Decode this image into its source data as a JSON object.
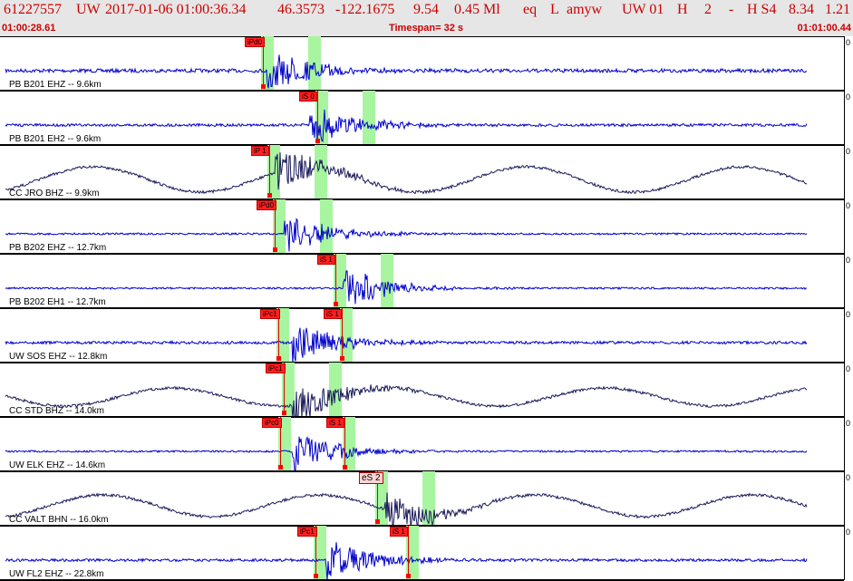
{
  "header": {
    "event_id": "61227557",
    "network": "UW",
    "datetime": "2017-01-06 01:00:36.34",
    "lat": "46.3573",
    "lon": "-122.1675",
    "depth": "9.54",
    "magnitude": "0.45 Ml",
    "etype": "eq",
    "flag": "L",
    "author": "amyw",
    "source": "UW 01",
    "h_flag": "H",
    "count": "2",
    "dash": "-",
    "quality": "H S4",
    "val1": "8.34",
    "val2": "1.21"
  },
  "timebar": {
    "start": "01:00:28.61",
    "timespan": "Timespan=  32 s",
    "end": "01:01:00.44"
  },
  "colors": {
    "header_text": "#cc0000",
    "trace_blue": "#0000cc",
    "trace_dark": "#1a1a5a",
    "window_green": "#a8f5a0",
    "pick_red": "#ff2020"
  },
  "right_strip": {
    "mark": "0"
  },
  "traces": [
    {
      "label": "PB B201 EHZ -- 9.6km",
      "color": "#0000cc",
      "style": "hf",
      "amp": 4,
      "onset": 0.31,
      "coda": 0.43,
      "picks": [
        {
          "label": "iPd0",
          "x": 270,
          "light": false
        }
      ]
    },
    {
      "label": "PB B201 EH2 -- 9.6km",
      "color": "#0000cc",
      "style": "hf",
      "amp": 3,
      "onset": 0.36,
      "coda": 0.46,
      "picks": [
        {
          "label": "iS 0",
          "x": 330,
          "light": false
        }
      ]
    },
    {
      "label": "CC JRO BHZ -- 9.9km",
      "color": "#1a1a5a",
      "style": "lf",
      "amp": 14,
      "onset": 0.32,
      "coda": 0.42,
      "picks": [
        {
          "label": "iP 1",
          "x": 277,
          "light": false
        }
      ]
    },
    {
      "label": "PB B202 EHZ -- 12.7km",
      "color": "#0000cc",
      "style": "hf",
      "amp": 2,
      "onset": 0.33,
      "coda": 0.44,
      "picks": [
        {
          "label": "iPd0",
          "x": 283,
          "light": false
        }
      ]
    },
    {
      "label": "PB B202 EH1 -- 12.7km",
      "color": "#0000cc",
      "style": "hf",
      "amp": 2,
      "onset": 0.4,
      "coda": 0.46,
      "picks": [
        {
          "label": "iS 1",
          "x": 350,
          "light": false
        }
      ]
    },
    {
      "label": "UW SOS EHZ -- 12.8km",
      "color": "#0000cc",
      "style": "hf",
      "amp": 3,
      "onset": 0.34,
      "coda": 0.46,
      "picks": [
        {
          "label": "iPc1",
          "x": 287,
          "light": false
        },
        {
          "label": "iS 1",
          "x": 357,
          "light": false
        }
      ]
    },
    {
      "label": "CC STD BHZ -- 14.0km",
      "color": "#1a1a5a",
      "style": "lf",
      "amp": 10,
      "onset": 0.34,
      "coda": 0.44,
      "picks": [
        {
          "label": "iPc1",
          "x": 293,
          "light": false
        }
      ]
    },
    {
      "label": "UW ELK EHZ -- 14.6km",
      "color": "#0000cc",
      "style": "hf",
      "amp": 2,
      "onset": 0.34,
      "coda": 0.46,
      "picks": [
        {
          "label": "iPc0",
          "x": 289,
          "light": false
        },
        {
          "label": "iS 1",
          "x": 360,
          "light": false
        }
      ]
    },
    {
      "label": "CC VALT BHN -- 16.0km",
      "color": "#1a1a5a",
      "style": "lf",
      "amp": 12,
      "onset": 0.45,
      "coda": 0.55,
      "picks": [
        {
          "label": "eS 2",
          "x": 396,
          "light": true
        }
      ]
    },
    {
      "label": "UW FL2 EHZ -- 22.8km",
      "color": "#0000cc",
      "style": "hf",
      "amp": 3,
      "onset": 0.38,
      "coda": 0.52,
      "picks": [
        {
          "label": "iPc1",
          "x": 328,
          "light": false
        },
        {
          "label": "iS 1",
          "x": 430,
          "light": false
        }
      ]
    }
  ]
}
